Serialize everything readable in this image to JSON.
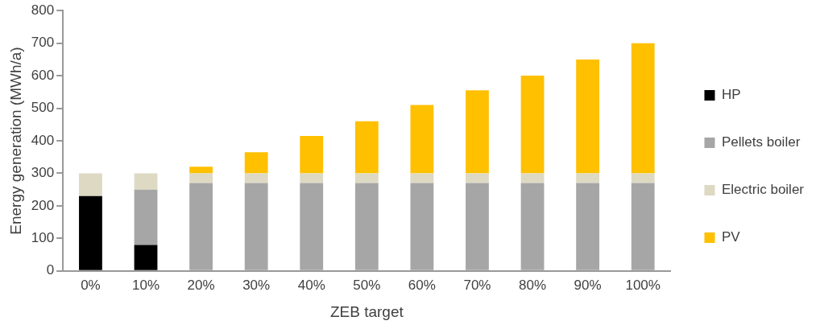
{
  "chart_data": {
    "type": "bar",
    "stacked": true,
    "xlabel": "ZEB target",
    "ylabel": "Energy generation (MWh/a)",
    "categories": [
      "0%",
      "10%",
      "20%",
      "30%",
      "40%",
      "50%",
      "60%",
      "70%",
      "80%",
      "90%",
      "100%"
    ],
    "series": [
      {
        "name": "HP",
        "color": "#000000",
        "values": [
          230,
          80,
          0,
          0,
          0,
          0,
          0,
          0,
          0,
          0,
          0
        ]
      },
      {
        "name": "Pellets boiler",
        "color": "#a6a6a6",
        "values": [
          0,
          170,
          270,
          270,
          270,
          270,
          270,
          270,
          270,
          270,
          270
        ]
      },
      {
        "name": "Electric boiler",
        "color": "#ddd9c3",
        "values": [
          70,
          50,
          30,
          30,
          30,
          30,
          30,
          30,
          30,
          30,
          30
        ]
      },
      {
        "name": "PV",
        "color": "#ffc000",
        "values": [
          0,
          0,
          20,
          65,
          115,
          160,
          210,
          255,
          300,
          350,
          400
        ]
      }
    ],
    "ylim": [
      0,
      800
    ],
    "yticks": [
      0,
      100,
      200,
      300,
      400,
      500,
      600,
      700,
      800
    ],
    "grid": false,
    "legend": "right"
  }
}
